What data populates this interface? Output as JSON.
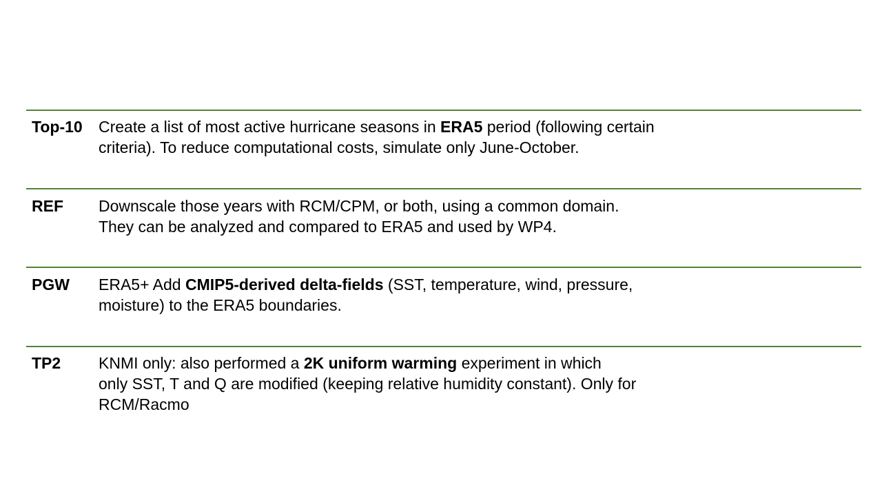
{
  "rows": [
    {
      "term": "Top-10",
      "line1_a": "Create a list of most active hurricane seasons in ",
      "line1_bold": "ERA5",
      "line1_b": " period (following certain",
      "line2": "criteria). To reduce computational costs, simulate only June-October."
    },
    {
      "term": "REF",
      "line1": "Downscale those years with RCM/CPM, or both, using a common domain.",
      "line2": "They can be analyzed and compared to ERA5 and used by WP4."
    },
    {
      "term": "PGW",
      "line1_a": "ERA5+ Add ",
      "line1_bold": "CMIP5-derived delta-fields",
      "line1_b": " (SST, temperature, wind, pressure,",
      "line2": "moisture) to the ERA5 boundaries."
    },
    {
      "term": "TP2",
      "line1_a": "KNMI only: also performed a ",
      "line1_bold": "2K uniform warming",
      "line1_b": " experiment in which",
      "line2": "only SST, T and Q are modified (keeping relative humidity constant). Only for",
      "line3": "RCM/Racmo"
    }
  ],
  "colors": {
    "rule": "#548235",
    "text": "#000000",
    "background": "#ffffff"
  }
}
